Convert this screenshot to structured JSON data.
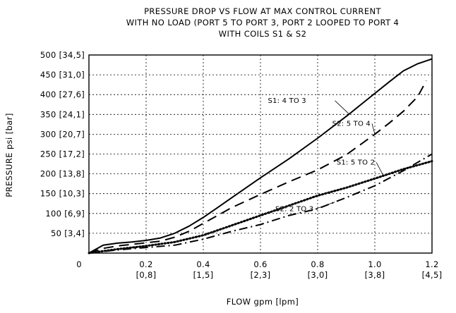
{
  "chart_data": {
    "type": "line",
    "title_lines": [
      "PRESSURE DROP VS FLOW AT MAX CONTROL CURRENT",
      "WITH NO LOAD (PORT 5 TO PORT 3, PORT 2 LOOPED TO PORT 4",
      "WITH COILS S1 & S2"
    ],
    "xlabel": "FLOW gpm [lpm]",
    "ylabel": "PRESSURE psi [bar]",
    "xlim": [
      0,
      1.2
    ],
    "ylim": [
      0,
      500
    ],
    "x_ticks": [
      {
        "value": 0,
        "label": "0",
        "sub": ""
      },
      {
        "value": 0.2,
        "label": "0.2",
        "sub": "[0,8]"
      },
      {
        "value": 0.4,
        "label": "0.4",
        "sub": "[1,5]"
      },
      {
        "value": 0.6,
        "label": "0.6",
        "sub": "[2,3]"
      },
      {
        "value": 0.8,
        "label": "0.8",
        "sub": "[3,0]"
      },
      {
        "value": 1.0,
        "label": "1.0",
        "sub": "[3,8]"
      },
      {
        "value": 1.2,
        "label": "1.2",
        "sub": "[4,5]"
      }
    ],
    "y_ticks": [
      {
        "value": 50,
        "label": "50 [3,4]"
      },
      {
        "value": 100,
        "label": "100 [6,9]"
      },
      {
        "value": 150,
        "label": "150 [10,3]"
      },
      {
        "value": 200,
        "label": "200 [13,8]"
      },
      {
        "value": 250,
        "label": "250 [17,2]"
      },
      {
        "value": 300,
        "label": "300 [20,7]"
      },
      {
        "value": 350,
        "label": "350 [24,1]"
      },
      {
        "value": 400,
        "label": "400 [27,6]"
      },
      {
        "value": 450,
        "label": "450 [31,0]"
      },
      {
        "value": 500,
        "label": "500 [34,5]"
      }
    ],
    "grid": true,
    "series": [
      {
        "name": "S1: 4 TO 3",
        "style": "solid",
        "x": [
          0,
          0.05,
          0.1,
          0.15,
          0.2,
          0.25,
          0.3,
          0.35,
          0.4,
          0.45,
          0.5,
          0.6,
          0.7,
          0.8,
          0.9,
          1.0,
          1.05,
          1.1,
          1.15,
          1.2
        ],
        "y": [
          0,
          20,
          25,
          28,
          32,
          38,
          50,
          68,
          90,
          115,
          140,
          190,
          238,
          290,
          345,
          403,
          432,
          460,
          478,
          490
        ]
      },
      {
        "name": "S2: 5 TO 4",
        "style": "dashed",
        "x": [
          0,
          0.05,
          0.1,
          0.15,
          0.2,
          0.25,
          0.3,
          0.35,
          0.4,
          0.45,
          0.5,
          0.6,
          0.7,
          0.8,
          0.9,
          1.0,
          1.05,
          1.1,
          1.15,
          1.18
        ],
        "y": [
          0,
          12,
          18,
          22,
          26,
          30,
          40,
          55,
          75,
          95,
          115,
          148,
          180,
          210,
          248,
          300,
          328,
          358,
          395,
          435
        ]
      },
      {
        "name": "S1: 5 TO 2",
        "style": "dotted",
        "x": [
          0,
          0.1,
          0.2,
          0.3,
          0.4,
          0.5,
          0.6,
          0.7,
          0.8,
          0.9,
          1.0,
          1.1,
          1.2
        ],
        "y": [
          0,
          10,
          18,
          28,
          45,
          70,
          95,
          120,
          145,
          165,
          188,
          212,
          232
        ]
      },
      {
        "name": "S2: 2 TO 3",
        "style": "dashdot",
        "x": [
          0,
          0.1,
          0.2,
          0.3,
          0.4,
          0.5,
          0.6,
          0.7,
          0.8,
          0.9,
          1.0,
          1.1,
          1.2
        ],
        "y": [
          0,
          8,
          14,
          20,
          35,
          55,
          72,
          95,
          112,
          140,
          170,
          208,
          250
        ]
      }
    ],
    "annotations": [
      {
        "text": "S1: 4 TO 3",
        "series": 0,
        "anchor_x": 0.91
      },
      {
        "text": "S2: 5 TO 4",
        "series": 1,
        "anchor_x": 1.0
      },
      {
        "text": "S1: 5 TO 2",
        "series": 2,
        "anchor_x": 1.03
      },
      {
        "text": "S2: 2 TO 3",
        "series": 3,
        "anchor_x": 0.86
      }
    ]
  }
}
